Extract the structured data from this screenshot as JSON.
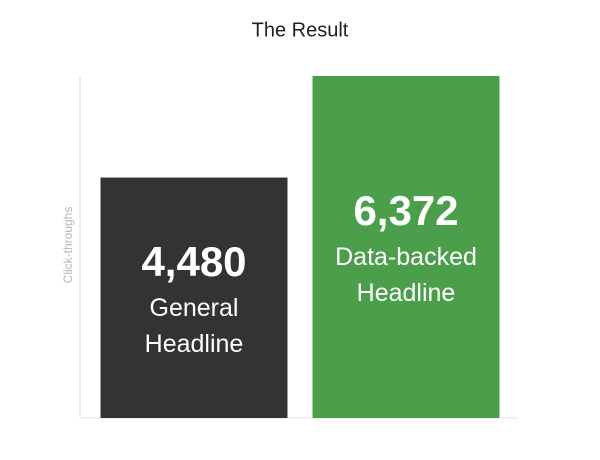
{
  "chart_data": {
    "type": "bar",
    "title": "The Result",
    "y_label": "Click-throughs",
    "categories": [
      "General Headline",
      "Data-backed Headline"
    ],
    "values": [
      4480,
      6372
    ],
    "value_labels": [
      "4,480",
      "6,372"
    ],
    "colors": [
      "#333333",
      "#4b9f4a"
    ],
    "ylim": [
      0,
      6372
    ],
    "grid": false
  }
}
